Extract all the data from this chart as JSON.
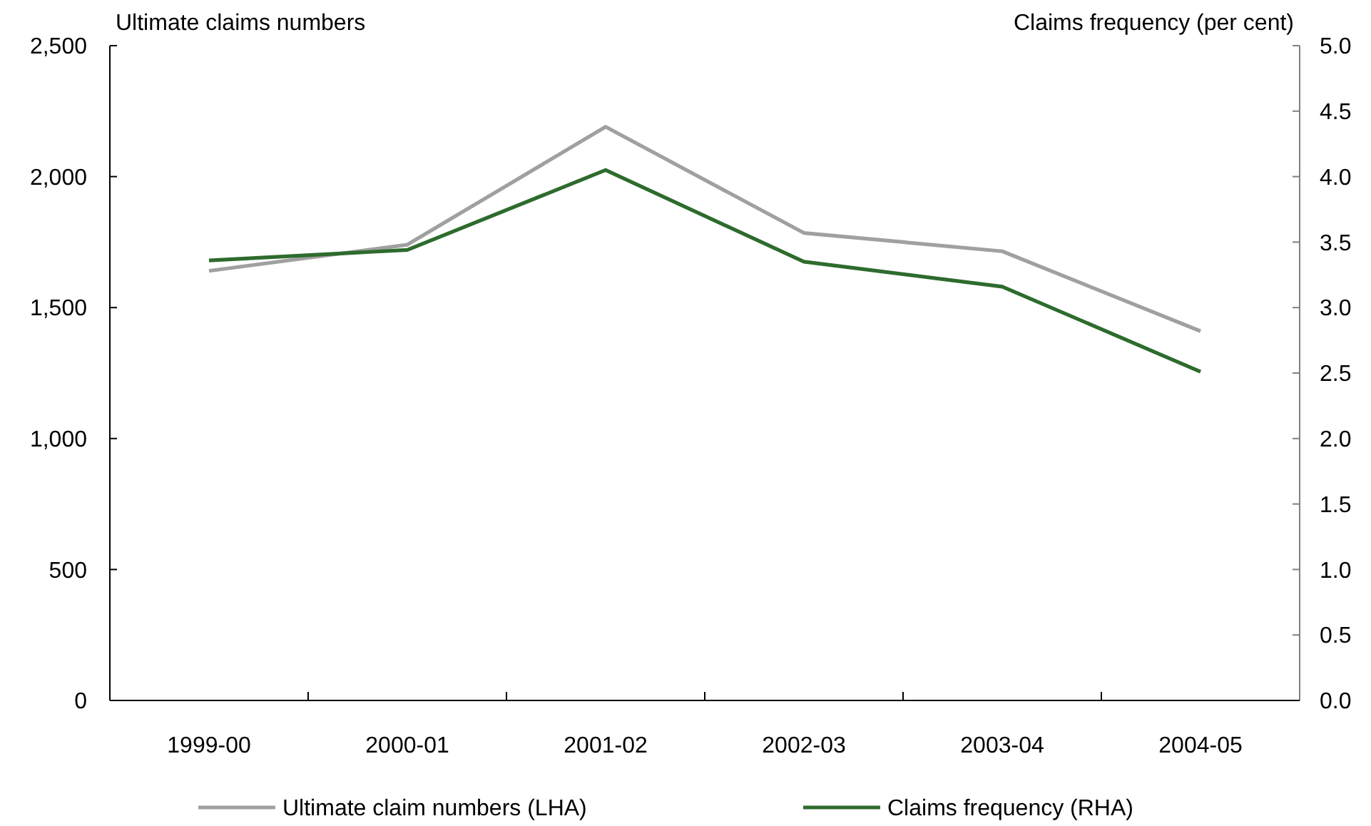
{
  "chart_data": {
    "type": "line",
    "ylabel": "Ultimate claims numbers",
    "y2label": "Claims frequency (per cent)",
    "categories": [
      "1999-00",
      "2000-01",
      "2001-02",
      "2002-03",
      "2003-04",
      "2004-05"
    ],
    "series": [
      {
        "name": "Ultimate claim numbers (LHA)",
        "color": "#a0a0a0",
        "values": [
          1640,
          1740,
          2190,
          1785,
          1715,
          1410
        ]
      },
      {
        "name": "Claims frequency (RHA)",
        "color": "#2e6b2e",
        "values": [
          3.36,
          3.44,
          4.05,
          3.35,
          3.16,
          2.51
        ],
        "axis": "y2"
      }
    ],
    "ylim": [
      0,
      2500
    ],
    "yticks": [
      0,
      500,
      {
        "value": 1000,
        "label": "1,000"
      },
      {
        "value": 1500,
        "label": "1,500"
      },
      {
        "value": 2000,
        "label": "2,000"
      },
      {
        "value": 2500,
        "label": "2,500"
      }
    ],
    "y2lim": [
      0,
      5
    ],
    "y2ticks": [
      {
        "value": 0,
        "label": "0.0"
      },
      {
        "value": 0.5,
        "label": "0.5"
      },
      {
        "value": 1,
        "label": "1.0"
      },
      {
        "value": 1.5,
        "label": "1.5"
      },
      {
        "value": 2,
        "label": "2.0"
      },
      {
        "value": 2.5,
        "label": "2.5"
      },
      {
        "value": 3,
        "label": "3.0"
      },
      {
        "value": 3.5,
        "label": "3.5"
      },
      {
        "value": 4,
        "label": "4.0"
      },
      {
        "value": 4.5,
        "label": "4.5"
      },
      {
        "value": 5,
        "label": "5.0"
      }
    ],
    "legend": "bottom",
    "grid": false,
    "marker": "none",
    "line_style": "solid"
  }
}
